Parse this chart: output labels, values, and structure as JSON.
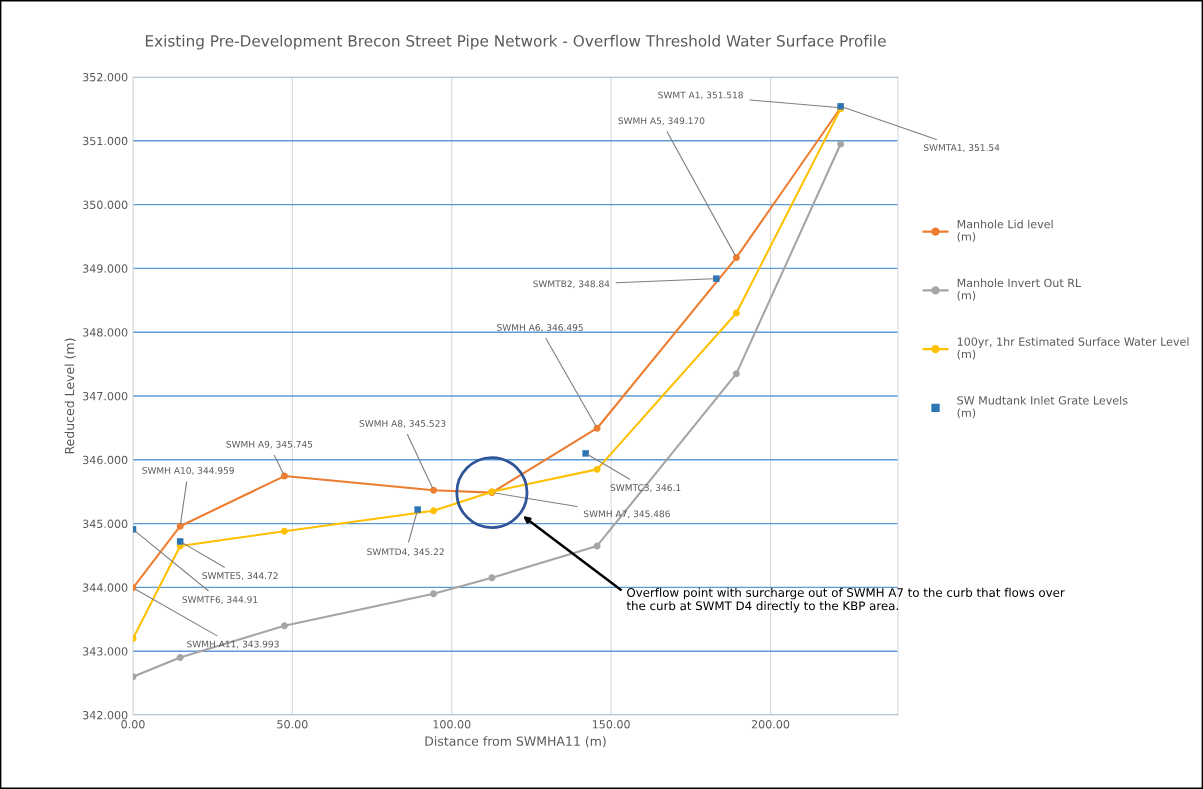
{
  "chart_data": {
    "type": "line",
    "title": "Existing Pre-Development Brecon Street Pipe Network - Overflow Threshold Water Surface Profile",
    "xlabel": "Distance from SWMHA11 (m)",
    "ylabel": "Reduced Level (m)",
    "series": [
      {
        "name": "Manhole Lid level\n(m)",
        "color": "#ed7d31",
        "marker": "circle",
        "x": [
          0,
          14.8,
          47.5,
          94.3,
          112.6,
          145.6,
          189.3,
          222
        ],
        "values": [
          343.993,
          344.959,
          345.745,
          345.523,
          345.486,
          346.495,
          349.17,
          351.518
        ]
      },
      {
        "name": "Manhole Invert Out RL\n(m)",
        "color": "#a5a5a5",
        "marker": "circle",
        "x": [
          0,
          14.8,
          47.5,
          94.3,
          112.6,
          145.6,
          189.3,
          222
        ],
        "values": [
          342.6,
          342.9,
          343.4,
          343.9,
          344.15,
          344.65,
          347.35,
          350.95
        ]
      },
      {
        "name": "100yr, 1hr Estimated Surface Water Level\n(m)",
        "color": "#ffc000",
        "marker": "circle",
        "x": [
          0,
          14.8,
          47.5,
          94.3,
          112.6,
          145.6,
          189.3,
          222
        ],
        "values": [
          343.2,
          344.65,
          344.88,
          345.2,
          345.5,
          345.85,
          348.3,
          351.5
        ]
      },
      {
        "name": "SW Mudtank Inlet Grate Levels\n(m)",
        "color": "#2e75b6",
        "type": "scatter",
        "marker": "square",
        "x": [
          0,
          14.8,
          89.3,
          142,
          183,
          222
        ],
        "values": [
          344.91,
          344.72,
          345.22,
          346.1,
          348.84,
          351.54
        ]
      }
    ],
    "annotations": [
      {
        "text": "SWMH A11, 343.993",
        "x": 0,
        "y": 343.993
      },
      {
        "text": "SWMH A10, 344.959",
        "x": 14.8,
        "y": 344.959
      },
      {
        "text": "SWMH A9, 345.745",
        "x": 47.5,
        "y": 345.745
      },
      {
        "text": "SWMH A8, 345.523",
        "x": 94.3,
        "y": 345.523
      },
      {
        "text": "SWMH A7, 345.486",
        "x": 112.6,
        "y": 345.486
      },
      {
        "text": "SWMH A6, 346.495",
        "x": 145.6,
        "y": 346.495
      },
      {
        "text": "SWMH A5, 349.170",
        "x": 189.3,
        "y": 349.17
      },
      {
        "text": "SWMT A1, 351.518",
        "x": 222,
        "y": 351.518
      },
      {
        "text": "SWMTF6, 344.91",
        "x": 0,
        "y": 344.91
      },
      {
        "text": "SWMTE5, 344.72",
        "x": 14.8,
        "y": 344.72
      },
      {
        "text": "SWMTD4, 345.22",
        "x": 89.3,
        "y": 345.22
      },
      {
        "text": "SWMTC3, 346.1",
        "x": 142,
        "y": 346.1
      },
      {
        "text": "SWMTB2, 348.84",
        "x": 183,
        "y": 348.84
      },
      {
        "text": "SWMTA1, 351.54",
        "x": 222,
        "y": 351.54
      },
      "Overflow point with surcharge out of SWMH A7 to the curb that flows over\nthe curb at SWMT D4 directly to the KBP area."
    ],
    "xlim": [
      0,
      240
    ],
    "xticks": [
      {
        "value": 0,
        "label": "0.00"
      },
      {
        "value": 50,
        "label": "50.00"
      },
      {
        "value": 100,
        "label": "100.00"
      },
      {
        "value": 150,
        "label": "150.00"
      },
      {
        "value": 200,
        "label": "200.00"
      }
    ],
    "ylim": [
      342,
      352
    ],
    "yticks": [
      {
        "value": 342,
        "label": "342.000"
      },
      {
        "value": 343,
        "label": "343.000"
      },
      {
        "value": 344,
        "label": "344.000"
      },
      {
        "value": 345,
        "label": "345.000"
      },
      {
        "value": 346,
        "label": "346.000"
      },
      {
        "value": 347,
        "label": "347.000"
      },
      {
        "value": 348,
        "label": "348.000"
      },
      {
        "value": 349,
        "label": "349.000"
      },
      {
        "value": 350,
        "label": "350.000"
      },
      {
        "value": 351,
        "label": "351.000"
      },
      {
        "value": 352,
        "label": "352.000"
      }
    ],
    "grid": true,
    "legend": "right"
  }
}
